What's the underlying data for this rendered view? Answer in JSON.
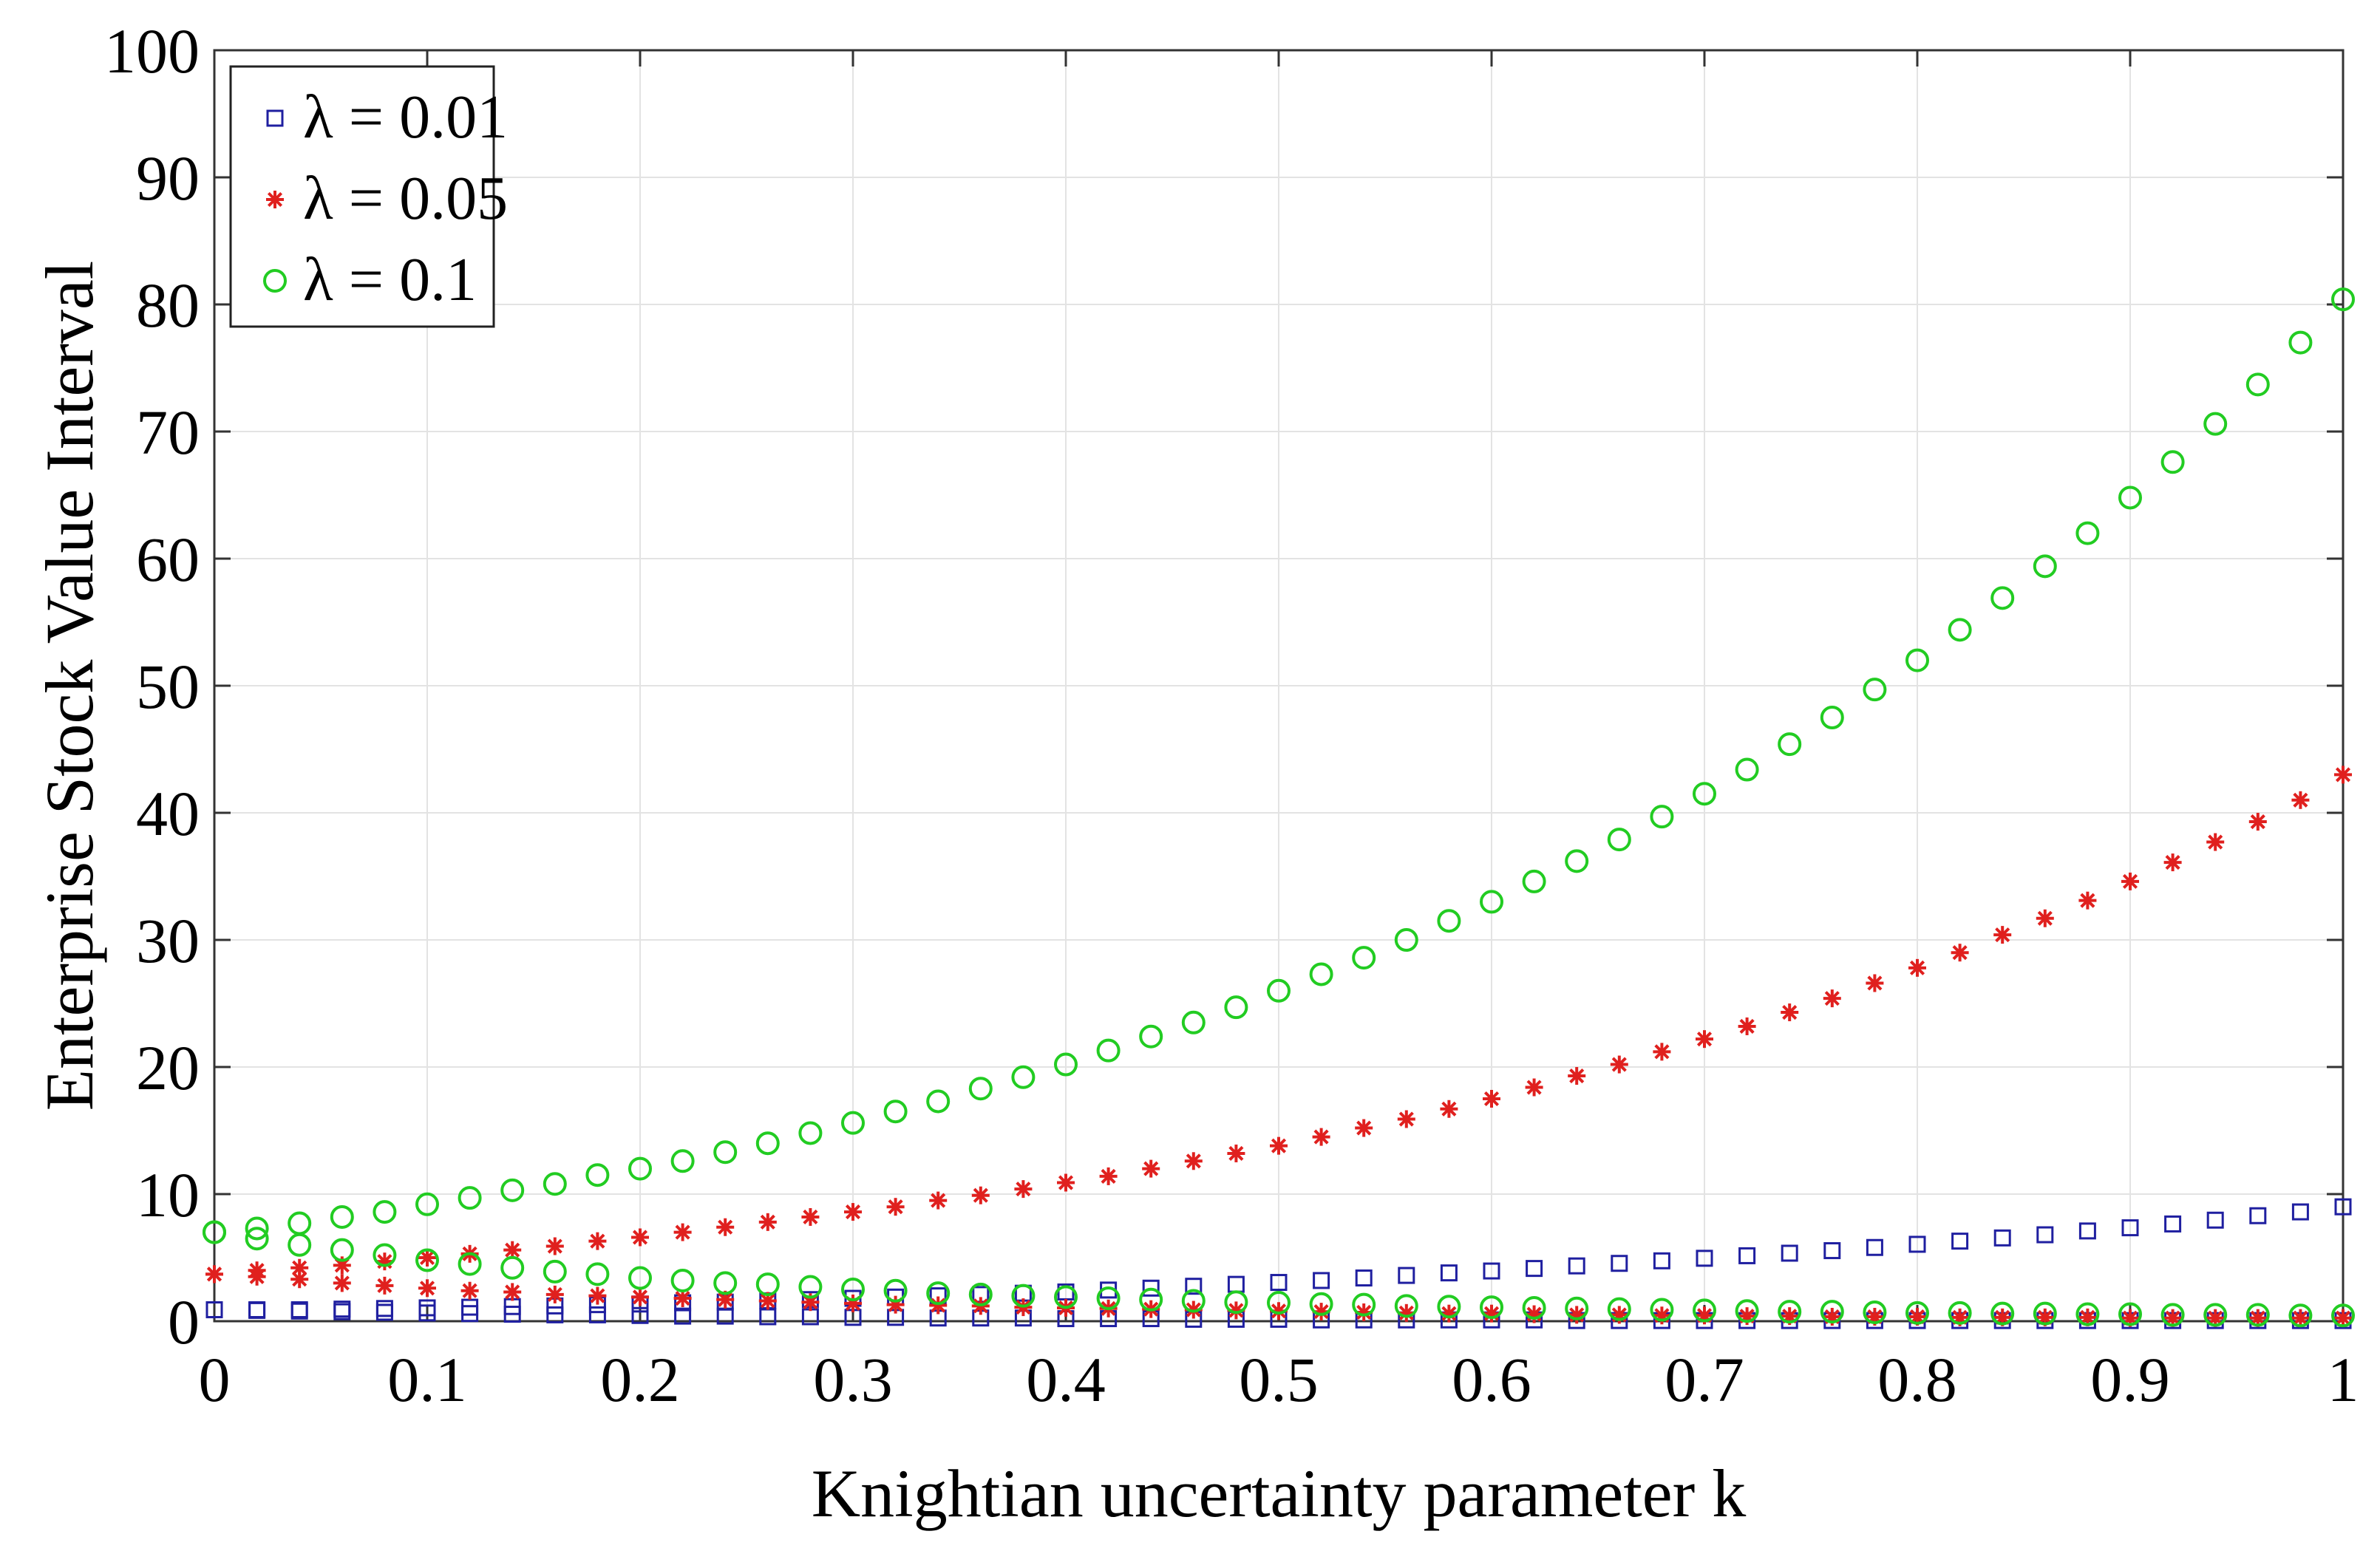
{
  "chart_data": {
    "type": "scatter",
    "title": "",
    "xlabel": "Knightian uncertainty parameter k",
    "ylabel": "Enterprise Stock Value Interval",
    "xlim": [
      0,
      1
    ],
    "ylim": [
      0,
      100
    ],
    "grid": true,
    "legend_position": "top-left",
    "x_ticks": [
      0,
      0.1,
      0.2,
      0.3,
      0.4,
      0.5,
      0.6,
      0.7,
      0.8,
      0.9,
      1
    ],
    "x_tick_labels": [
      "0",
      "0.1",
      "0.2",
      "0.3",
      "0.4",
      "0.5",
      "0.6",
      "0.7",
      "0.8",
      "0.9",
      "1"
    ],
    "y_ticks": [
      0,
      10,
      20,
      30,
      40,
      50,
      60,
      70,
      80,
      90,
      100
    ],
    "y_tick_labels": [
      "0",
      "10",
      "20",
      "30",
      "40",
      "50",
      "60",
      "70",
      "80",
      "90",
      "100"
    ],
    "x": [
      0,
      0.02,
      0.04,
      0.06,
      0.08,
      0.1,
      0.12,
      0.14,
      0.16,
      0.18,
      0.2,
      0.22,
      0.24,
      0.26,
      0.28,
      0.3,
      0.32,
      0.34,
      0.36,
      0.38,
      0.4,
      0.42,
      0.44,
      0.46,
      0.48,
      0.5,
      0.52,
      0.54,
      0.56,
      0.58,
      0.6,
      0.62,
      0.64,
      0.66,
      0.68,
      0.7,
      0.72,
      0.74,
      0.76,
      0.78,
      0.8,
      0.82,
      0.84,
      0.86,
      0.88,
      0.9,
      0.92,
      0.94,
      0.96,
      0.98,
      1
    ],
    "series": [
      {
        "name": "λ = 0.01",
        "marker": "square",
        "color": "#1f1fa0",
        "upper": [
          0.9,
          0.9,
          0.9,
          0.95,
          1.0,
          1.05,
          1.1,
          1.15,
          1.2,
          1.3,
          1.35,
          1.45,
          1.5,
          1.6,
          1.7,
          1.8,
          1.9,
          2.0,
          2.1,
          2.2,
          2.3,
          2.45,
          2.6,
          2.75,
          2.9,
          3.05,
          3.2,
          3.4,
          3.6,
          3.8,
          3.95,
          4.15,
          4.35,
          4.55,
          4.75,
          4.95,
          5.15,
          5.35,
          5.55,
          5.8,
          6.05,
          6.3,
          6.55,
          6.8,
          7.1,
          7.35,
          7.65,
          7.95,
          8.3,
          8.6,
          9.0
        ],
        "lower": [
          0.9,
          0.85,
          0.8,
          0.75,
          0.7,
          0.65,
          0.6,
          0.55,
          0.5,
          0.5,
          0.45,
          0.4,
          0.4,
          0.35,
          0.35,
          0.3,
          0.3,
          0.25,
          0.25,
          0.25,
          0.2,
          0.2,
          0.2,
          0.15,
          0.15,
          0.15,
          0.1,
          0.1,
          0.1,
          0.1,
          0.1,
          0.1,
          0.05,
          0.05,
          0.05,
          0.05,
          0.05,
          0.05,
          0.05,
          0.05,
          0.05,
          0.05,
          0.05,
          0.05,
          0.05,
          0.05,
          0.05,
          0.05,
          0.05,
          0.05,
          0.05
        ]
      },
      {
        "name": "λ = 0.05",
        "marker": "asterisk",
        "color": "#e0201e",
        "upper": [
          3.7,
          4.0,
          4.2,
          4.4,
          4.7,
          5.0,
          5.3,
          5.6,
          5.9,
          6.3,
          6.6,
          7.0,
          7.4,
          7.8,
          8.2,
          8.6,
          9.0,
          9.5,
          9.9,
          10.4,
          10.9,
          11.4,
          12.0,
          12.6,
          13.2,
          13.8,
          14.5,
          15.2,
          15.9,
          16.7,
          17.5,
          18.4,
          19.3,
          20.2,
          21.2,
          22.2,
          23.2,
          24.3,
          25.4,
          26.6,
          27.8,
          29.0,
          30.4,
          31.7,
          33.1,
          34.6,
          36.1,
          37.7,
          39.3,
          41.0,
          43.0
        ],
        "lower": [
          3.7,
          3.5,
          3.3,
          3.0,
          2.8,
          2.6,
          2.4,
          2.3,
          2.1,
          2.0,
          1.9,
          1.8,
          1.7,
          1.6,
          1.5,
          1.4,
          1.3,
          1.25,
          1.2,
          1.1,
          1.05,
          1.0,
          0.95,
          0.9,
          0.85,
          0.8,
          0.75,
          0.7,
          0.65,
          0.6,
          0.6,
          0.55,
          0.5,
          0.5,
          0.45,
          0.45,
          0.4,
          0.4,
          0.35,
          0.35,
          0.35,
          0.3,
          0.3,
          0.3,
          0.3,
          0.25,
          0.25,
          0.25,
          0.25,
          0.25,
          0.25
        ]
      },
      {
        "name": "λ = 0.1",
        "marker": "circle",
        "color": "#22cc22",
        "upper": [
          7.0,
          7.3,
          7.7,
          8.2,
          8.6,
          9.2,
          9.7,
          10.3,
          10.8,
          11.5,
          12.0,
          12.6,
          13.3,
          14.0,
          14.8,
          15.6,
          16.5,
          17.3,
          18.3,
          19.2,
          20.2,
          21.3,
          22.4,
          23.5,
          24.7,
          26.0,
          27.3,
          28.6,
          30.0,
          31.5,
          33.0,
          34.6,
          36.2,
          37.9,
          39.7,
          41.5,
          43.4,
          45.4,
          47.5,
          49.7,
          52.0,
          54.4,
          56.9,
          59.4,
          62.0,
          64.8,
          67.6,
          70.6,
          73.7,
          77.0,
          80.4
        ],
        "lower": [
          7.0,
          6.5,
          6.0,
          5.6,
          5.2,
          4.8,
          4.5,
          4.2,
          3.9,
          3.7,
          3.4,
          3.2,
          3.0,
          2.9,
          2.7,
          2.5,
          2.4,
          2.2,
          2.1,
          2.0,
          1.9,
          1.8,
          1.7,
          1.6,
          1.5,
          1.45,
          1.35,
          1.3,
          1.2,
          1.15,
          1.1,
          1.05,
          1.0,
          0.95,
          0.9,
          0.85,
          0.8,
          0.75,
          0.75,
          0.7,
          0.65,
          0.65,
          0.6,
          0.6,
          0.55,
          0.55,
          0.5,
          0.5,
          0.5,
          0.45,
          0.45
        ]
      }
    ]
  }
}
